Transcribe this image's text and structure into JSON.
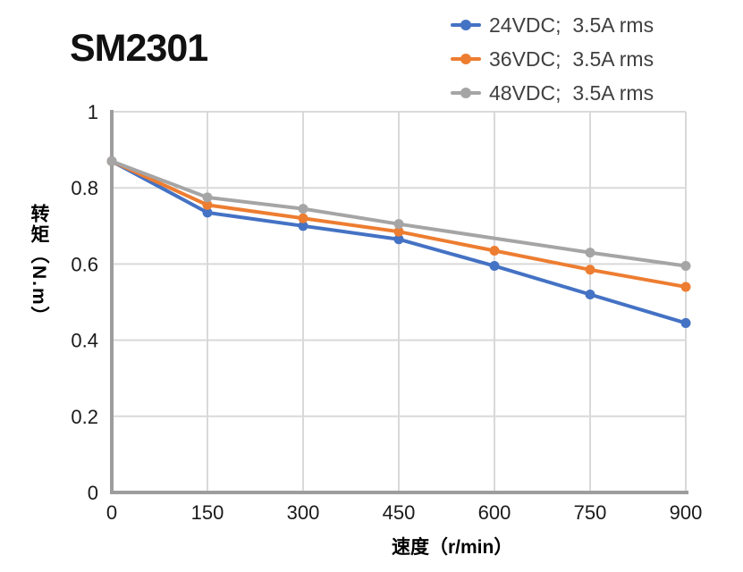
{
  "chart_data": {
    "type": "line",
    "title": "SM2301",
    "xlabel": "速度（r/min）",
    "ylabel": "转矩（N.m）",
    "xlim": [
      0,
      900
    ],
    "ylim": [
      0,
      1
    ],
    "x_ticks": [
      0,
      150,
      300,
      450,
      600,
      750,
      900
    ],
    "x_tick_labels": [
      "0",
      "150",
      "300",
      "450",
      "600",
      "750",
      "900"
    ],
    "y_ticks": [
      0,
      0.2,
      0.4,
      0.6,
      0.8,
      1
    ],
    "y_tick_labels": [
      "0",
      "0.2",
      "0.4",
      "0.6",
      "0.8",
      "1"
    ],
    "grid": true,
    "legend_position": "top-right",
    "series": [
      {
        "name": "24VDC;  3.5A rms",
        "color": "#4472C4",
        "x": [
          0,
          150,
          300,
          450,
          600,
          750,
          900
        ],
        "y": [
          0.87,
          0.735,
          0.7,
          0.665,
          0.595,
          0.52,
          0.445
        ]
      },
      {
        "name": "36VDC;  3.5A rms",
        "color": "#ED7D31",
        "x": [
          0,
          150,
          300,
          450,
          600,
          750,
          900
        ],
        "y": [
          0.87,
          0.755,
          0.72,
          0.685,
          0.635,
          0.585,
          0.54
        ]
      },
      {
        "name": "48VDC;  3.5A rms",
        "color": "#A5A5A5",
        "x": [
          0,
          150,
          300,
          450,
          750,
          900
        ],
        "y": [
          0.87,
          0.775,
          0.745,
          0.705,
          0.63,
          0.595
        ]
      }
    ],
    "colors": {
      "grid": "#D9D9D9",
      "axis": "#9D9D9D",
      "tick_text": "#1A1A1A",
      "legend_text": "#404040",
      "title_text": "#111111"
    }
  }
}
